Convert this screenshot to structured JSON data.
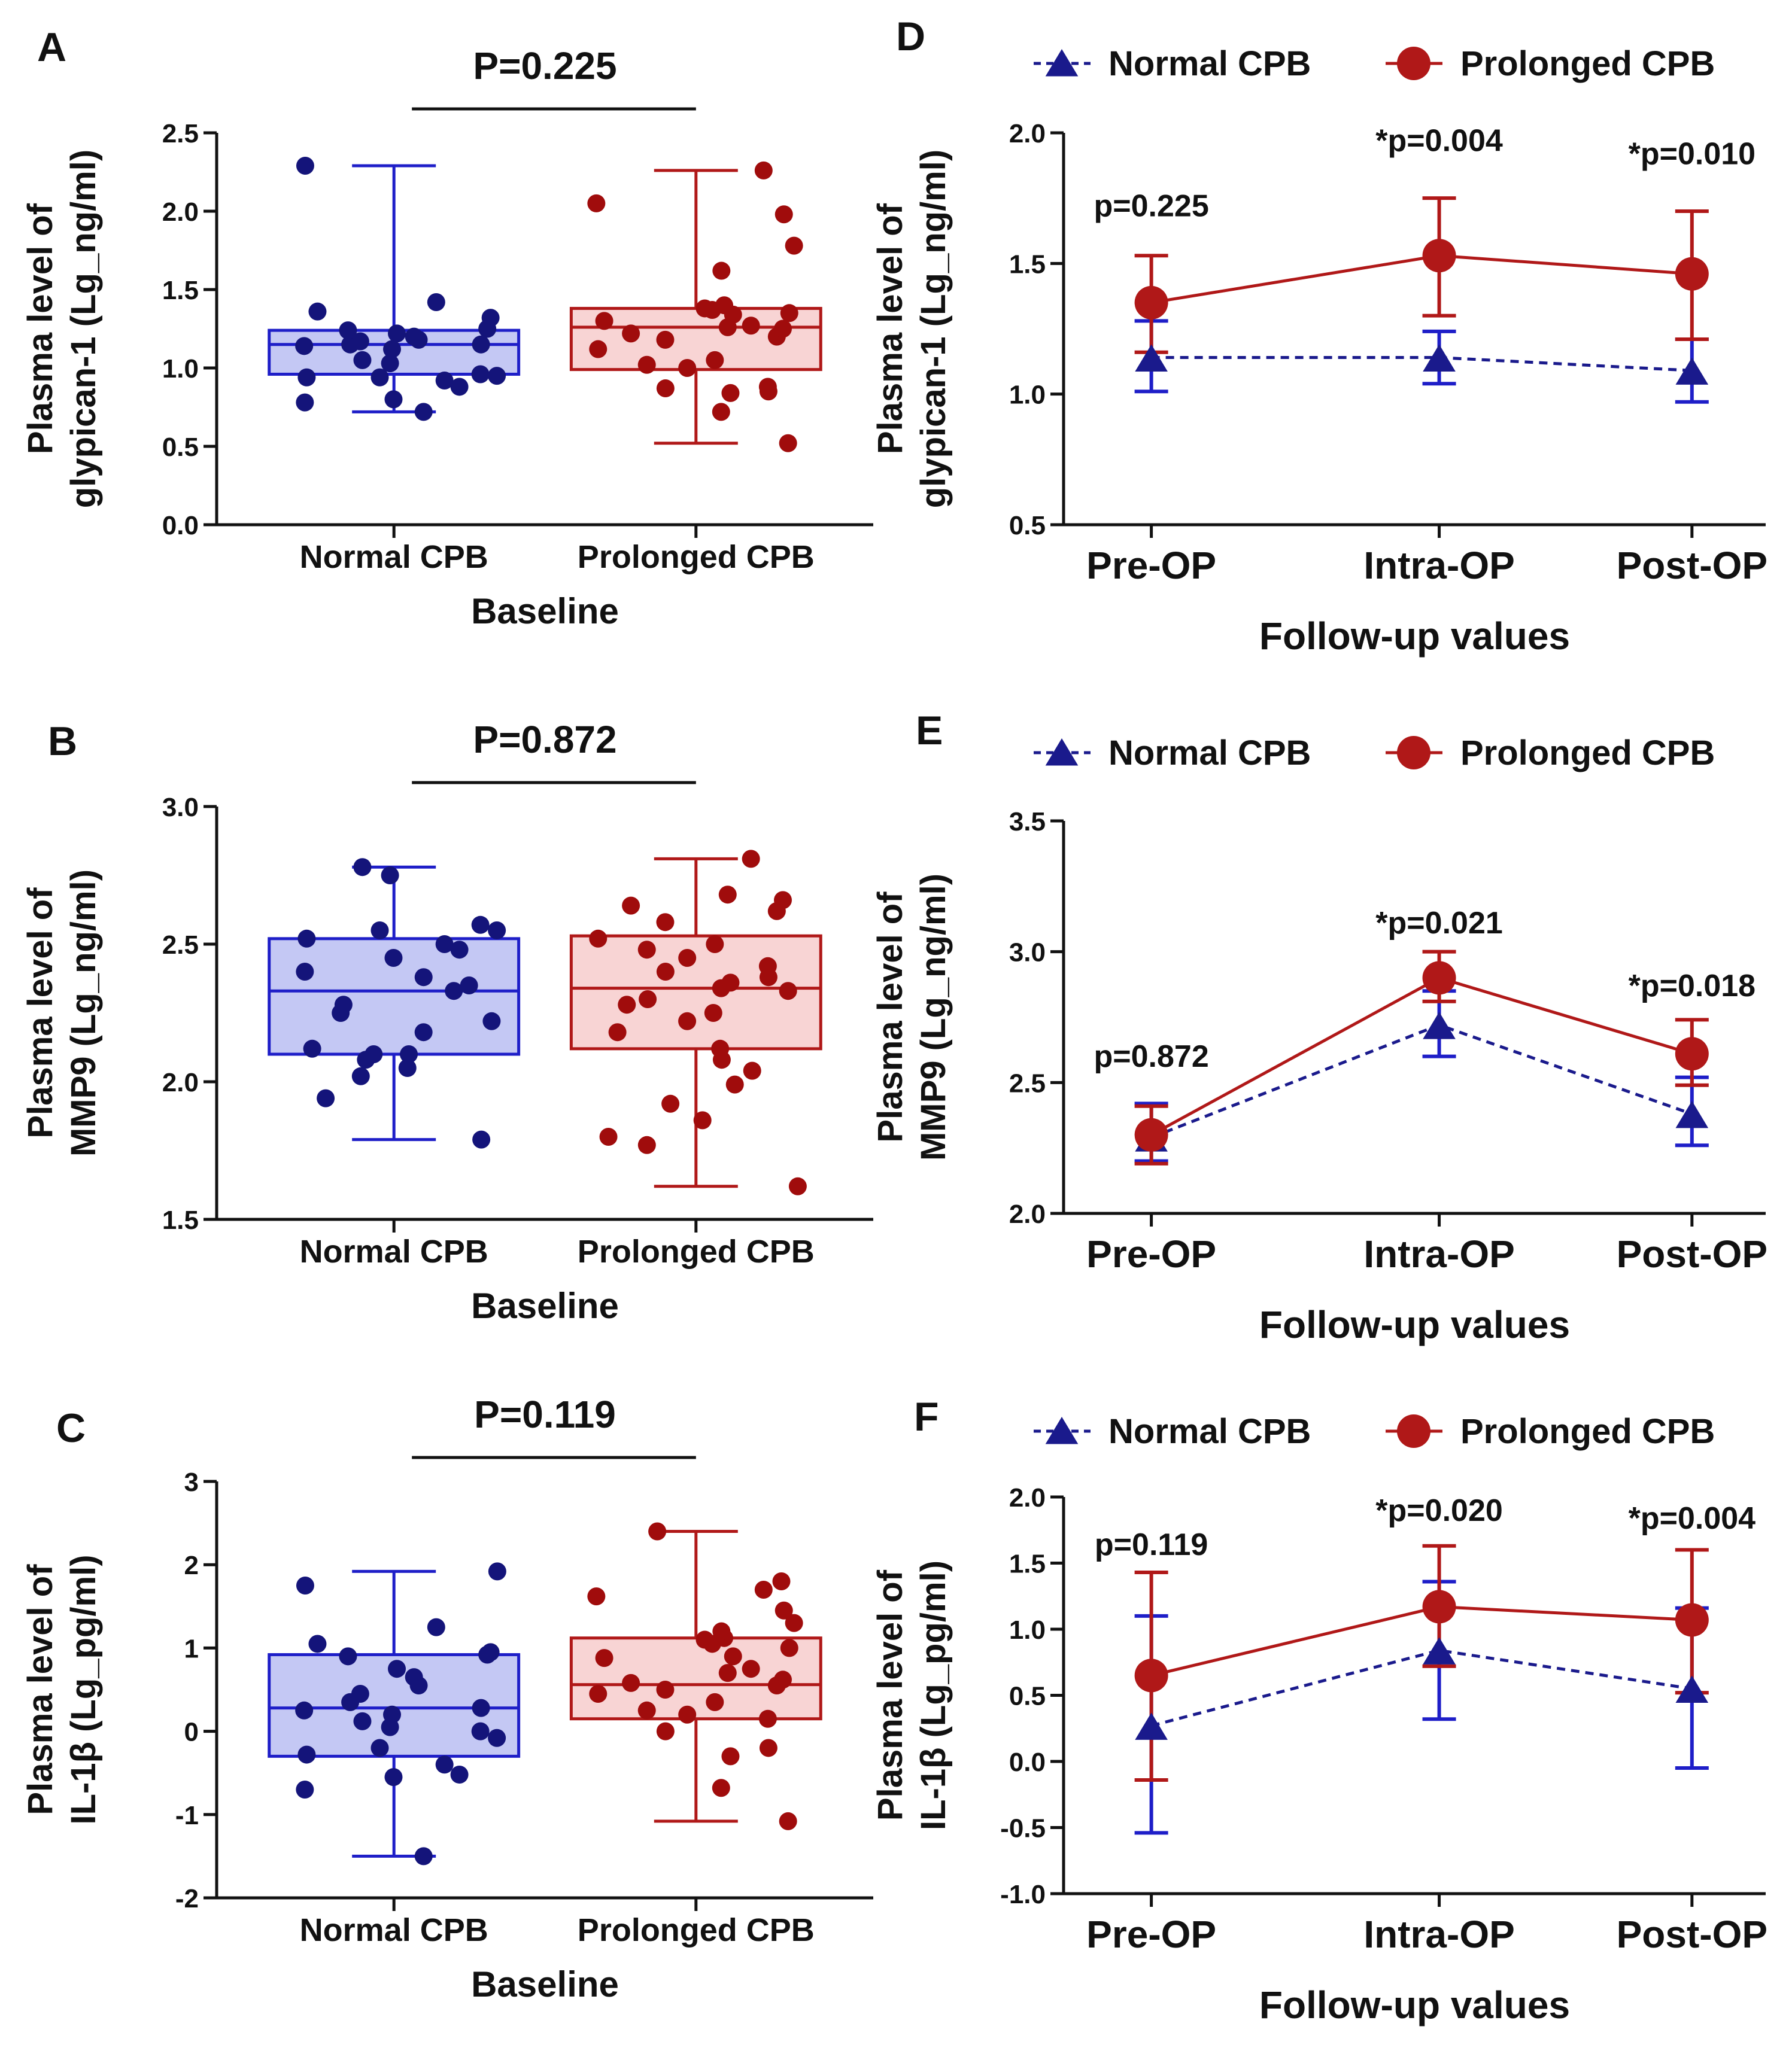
{
  "figure": {
    "background": "#ffffff"
  },
  "colors": {
    "normal_stroke": "#1e1ec8",
    "normal_fill": "#c4c8f4",
    "normal_dot": "#14147a",
    "prolonged_stroke": "#b01818",
    "prolonged_fill": "#f8d4d4",
    "prolonged_dot": "#a00c0c",
    "normal_line": "#1a1a8c",
    "prolonged_line": "#b01818",
    "axis": "#111111"
  },
  "chart_data": [
    {
      "panel": "A",
      "type": "box",
      "title": "P=0.225",
      "ylabel": [
        "Plasma level of",
        "glypican-1 (Lg_ng/ml)"
      ],
      "xlabel": "Baseline",
      "ylim": [
        0,
        2.5
      ],
      "yticks": [
        0.0,
        0.5,
        1.0,
        1.5,
        2.0,
        2.5
      ],
      "ytick_labels": [
        "0.0",
        "0.5",
        "1.0",
        "1.5",
        "2.0",
        "2.5"
      ],
      "groups": [
        {
          "name": "Normal CPB",
          "min": 0.72,
          "q1": 0.96,
          "median": 1.15,
          "q3": 1.24,
          "max": 2.29,
          "points": [
            0.72,
            0.78,
            0.8,
            0.88,
            0.92,
            0.94,
            0.94,
            0.95,
            0.96,
            1.03,
            1.05,
            1.12,
            1.14,
            1.15,
            1.15,
            1.17,
            1.18,
            1.2,
            1.22,
            1.24,
            1.25,
            1.32,
            1.36,
            1.42,
            2.29
          ]
        },
        {
          "name": "Prolonged CPB",
          "min": 0.52,
          "q1": 0.99,
          "median": 1.26,
          "q3": 1.38,
          "max": 2.26,
          "points": [
            0.52,
            0.72,
            0.84,
            0.85,
            0.87,
            0.88,
            1.0,
            1.02,
            1.05,
            1.12,
            1.18,
            1.2,
            1.22,
            1.25,
            1.26,
            1.27,
            1.3,
            1.34,
            1.35,
            1.37,
            1.38,
            1.4,
            1.62,
            1.78,
            1.98,
            2.05,
            2.26
          ]
        }
      ]
    },
    {
      "panel": "B",
      "type": "box",
      "title": "P=0.872",
      "ylabel": [
        "Plasma level of",
        "MMP9 (Lg_ng/ml)"
      ],
      "xlabel": "Baseline",
      "ylim": [
        1.5,
        3.0
      ],
      "yticks": [
        1.5,
        2.0,
        2.5,
        3.0
      ],
      "ytick_labels": [
        "1.5",
        "2.0",
        "2.5",
        "3.0"
      ],
      "groups": [
        {
          "name": "Normal CPB",
          "min": 1.79,
          "q1": 2.1,
          "median": 2.33,
          "q3": 2.52,
          "max": 2.78,
          "points": [
            1.79,
            1.94,
            2.02,
            2.05,
            2.08,
            2.1,
            2.1,
            2.12,
            2.18,
            2.22,
            2.25,
            2.28,
            2.33,
            2.35,
            2.38,
            2.4,
            2.45,
            2.48,
            2.5,
            2.52,
            2.55,
            2.55,
            2.57,
            2.75,
            2.78
          ]
        },
        {
          "name": "Prolonged CPB",
          "min": 1.62,
          "q1": 2.12,
          "median": 2.34,
          "q3": 2.53,
          "max": 2.81,
          "points": [
            1.62,
            1.77,
            1.8,
            1.86,
            1.92,
            1.99,
            2.04,
            2.08,
            2.12,
            2.18,
            2.22,
            2.25,
            2.28,
            2.3,
            2.33,
            2.34,
            2.36,
            2.38,
            2.4,
            2.42,
            2.45,
            2.48,
            2.5,
            2.52,
            2.58,
            2.62,
            2.64,
            2.66,
            2.68,
            2.81
          ]
        }
      ]
    },
    {
      "panel": "C",
      "type": "box",
      "title": "P=0.119",
      "ylabel": [
        "Plasma level of",
        "IL-1β (Lg_pg/ml)"
      ],
      "xlabel": "Baseline",
      "ylim": [
        -2,
        3
      ],
      "yticks": [
        -2,
        -1,
        0,
        1,
        2,
        3
      ],
      "ytick_labels": [
        "-2",
        "-1",
        "0",
        "1",
        "2",
        "3"
      ],
      "groups": [
        {
          "name": "Normal CPB",
          "min": -1.5,
          "q1": -0.3,
          "median": 0.28,
          "q3": 0.92,
          "max": 1.92,
          "points": [
            -1.5,
            -0.7,
            -0.55,
            -0.52,
            -0.4,
            -0.28,
            -0.2,
            -0.08,
            0.0,
            0.05,
            0.12,
            0.2,
            0.25,
            0.28,
            0.35,
            0.45,
            0.55,
            0.65,
            0.75,
            0.9,
            0.92,
            0.95,
            1.05,
            1.25,
            1.75,
            1.92
          ]
        },
        {
          "name": "Prolonged CPB",
          "min": -1.08,
          "q1": 0.15,
          "median": 0.56,
          "q3": 1.12,
          "max": 2.4,
          "points": [
            -1.08,
            -0.68,
            -0.3,
            -0.2,
            0.0,
            0.15,
            0.2,
            0.25,
            0.35,
            0.45,
            0.5,
            0.55,
            0.58,
            0.62,
            0.7,
            0.75,
            0.88,
            0.9,
            1.0,
            1.05,
            1.1,
            1.12,
            1.2,
            1.3,
            1.45,
            1.62,
            1.7,
            1.8,
            2.4
          ]
        }
      ]
    },
    {
      "panel": "D",
      "type": "line",
      "legend": [
        "Normal CPB",
        "Prolonged CPB"
      ],
      "ylabel": [
        "Plasma level of",
        "glypican-1 (Lg_ng/ml)"
      ],
      "xlabel": "Follow-up values",
      "categories": [
        "Pre-OP",
        "Intra-OP",
        "Post-OP"
      ],
      "ylim": [
        0.5,
        2.0
      ],
      "yticks": [
        0.5,
        1.0,
        1.5,
        2.0
      ],
      "ytick_labels": [
        "0.5",
        "1.0",
        "1.5",
        "2.0"
      ],
      "annotations": [
        "p=0.225",
        "*p=0.004",
        "*p=0.010"
      ],
      "annotation_y": [
        1.68,
        1.93,
        1.88
      ],
      "series": [
        {
          "name": "Normal CPB",
          "values": [
            1.14,
            1.14,
            1.09
          ],
          "err_low": [
            1.01,
            1.04,
            0.97
          ],
          "err_high": [
            1.28,
            1.24,
            1.21
          ]
        },
        {
          "name": "Prolonged CPB",
          "values": [
            1.35,
            1.53,
            1.46
          ],
          "err_low": [
            1.16,
            1.3,
            1.21
          ],
          "err_high": [
            1.53,
            1.75,
            1.7
          ]
        }
      ]
    },
    {
      "panel": "E",
      "type": "line",
      "legend": [
        "Normal CPB",
        "Prolonged CPB"
      ],
      "ylabel": [
        "Plasma level of",
        "MMP9 (Lg_ng/ml)"
      ],
      "xlabel": "Follow-up values",
      "categories": [
        "Pre-OP",
        "Intra-OP",
        "Post-OP"
      ],
      "ylim": [
        2.0,
        3.5
      ],
      "yticks": [
        2.0,
        2.5,
        3.0,
        3.5
      ],
      "ytick_labels": [
        "2.0",
        "2.5",
        "3.0",
        "3.5"
      ],
      "annotations": [
        "p=0.872",
        "*p=0.021",
        "*p=0.018"
      ],
      "annotation_y": [
        2.56,
        3.07,
        2.83
      ],
      "series": [
        {
          "name": "Normal CPB",
          "values": [
            2.29,
            2.72,
            2.38
          ],
          "err_low": [
            2.2,
            2.6,
            2.26
          ],
          "err_high": [
            2.42,
            2.85,
            2.52
          ]
        },
        {
          "name": "Prolonged CPB",
          "values": [
            2.3,
            2.9,
            2.61
          ],
          "err_low": [
            2.19,
            2.81,
            2.49
          ],
          "err_high": [
            2.41,
            3.0,
            2.74
          ]
        }
      ]
    },
    {
      "panel": "F",
      "type": "line",
      "legend": [
        "Normal CPB",
        "Prolonged CPB"
      ],
      "ylabel": [
        "Plasma level of",
        "IL-1β (Lg_pg/ml)"
      ],
      "xlabel": "Follow-up values",
      "categories": [
        "Pre-OP",
        "Intra-OP",
        "Post-OP"
      ],
      "ylim": [
        -1.0,
        2.0
      ],
      "yticks": [
        -1.0,
        -0.5,
        0.0,
        0.5,
        1.0,
        1.5,
        2.0
      ],
      "ytick_labels": [
        "-1.0",
        "-0.5",
        "0.0",
        "0.5",
        "1.0",
        "1.5",
        "2.0"
      ],
      "annotations": [
        "p=0.119",
        "*p=0.020",
        "*p=0.004"
      ],
      "annotation_y": [
        1.56,
        1.82,
        1.76
      ],
      "series": [
        {
          "name": "Normal CPB",
          "values": [
            0.27,
            0.84,
            0.55
          ],
          "err_low": [
            -0.54,
            0.32,
            -0.05
          ],
          "err_high": [
            1.1,
            1.36,
            1.16
          ]
        },
        {
          "name": "Prolonged CPB",
          "values": [
            0.65,
            1.17,
            1.07
          ],
          "err_low": [
            -0.14,
            0.72,
            0.52
          ],
          "err_high": [
            1.43,
            1.63,
            1.6
          ]
        }
      ]
    }
  ]
}
